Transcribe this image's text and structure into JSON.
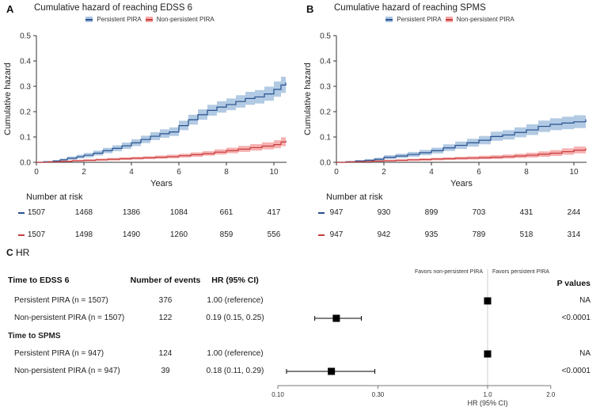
{
  "number_at_risk_heading": "Number at risk",
  "colors": {
    "persistent_line": "#27518f",
    "persistent_fill": "#aac4e0",
    "nonpersistent_line": "#c83c3c",
    "nonpersistent_fill": "#f5a8a8",
    "axis": "#333333",
    "reference_line": "#cccccc",
    "marker": "#000000"
  },
  "chart_data": [
    {
      "type": "line",
      "panel_letter": "A",
      "title": "Cumulative hazard of reaching EDSS 6",
      "xlabel": "Years",
      "ylabel": "Cumulative hazard",
      "xlim": [
        0,
        10.5
      ],
      "ylim": [
        0,
        0.5
      ],
      "xticks": [
        0,
        2,
        4,
        6,
        8,
        10
      ],
      "yticks": [
        0,
        0.1,
        0.2,
        0.3,
        0.4,
        0.5
      ],
      "ytick_labels": [
        "0.0",
        "0.1",
        "0.2",
        "0.3",
        "0.4",
        "0.5"
      ],
      "series": [
        {
          "name": "Persistent PIRA",
          "points": [
            [
              0,
              0,
              0,
              0
            ],
            [
              0.3,
              0.002,
              0,
              0.005
            ],
            [
              0.7,
              0.005,
              0.002,
              0.009
            ],
            [
              1,
              0.01,
              0.005,
              0.015
            ],
            [
              1.3,
              0.016,
              0.01,
              0.023
            ],
            [
              1.7,
              0.022,
              0.015,
              0.03
            ],
            [
              2,
              0.028,
              0.02,
              0.037
            ],
            [
              2.4,
              0.036,
              0.027,
              0.046
            ],
            [
              2.8,
              0.046,
              0.036,
              0.057
            ],
            [
              3.2,
              0.055,
              0.044,
              0.067
            ],
            [
              3.6,
              0.065,
              0.053,
              0.078
            ],
            [
              4,
              0.077,
              0.064,
              0.091
            ],
            [
              4.4,
              0.09,
              0.076,
              0.105
            ],
            [
              4.8,
              0.103,
              0.088,
              0.119
            ],
            [
              5.2,
              0.113,
              0.097,
              0.13
            ],
            [
              5.6,
              0.12,
              0.104,
              0.138
            ],
            [
              6,
              0.145,
              0.127,
              0.164
            ],
            [
              6.4,
              0.168,
              0.149,
              0.188
            ],
            [
              6.8,
              0.188,
              0.168,
              0.209
            ],
            [
              7.2,
              0.205,
              0.184,
              0.227
            ],
            [
              7.6,
              0.218,
              0.196,
              0.241
            ],
            [
              8,
              0.228,
              0.206,
              0.252
            ],
            [
              8.4,
              0.24,
              0.216,
              0.265
            ],
            [
              8.8,
              0.252,
              0.227,
              0.278
            ],
            [
              9.2,
              0.258,
              0.232,
              0.285
            ],
            [
              9.6,
              0.27,
              0.243,
              0.299
            ],
            [
              10,
              0.288,
              0.259,
              0.319
            ],
            [
              10.3,
              0.305,
              0.274,
              0.338
            ],
            [
              10.5,
              0.315,
              0.282,
              0.35
            ]
          ]
        },
        {
          "name": "Non-persistent PIRA",
          "points": [
            [
              0,
              0,
              0,
              0
            ],
            [
              0.5,
              0.002,
              0,
              0.004
            ],
            [
              1,
              0.004,
              0.001,
              0.007
            ],
            [
              1.5,
              0.006,
              0.003,
              0.01
            ],
            [
              2,
              0.008,
              0.004,
              0.012
            ],
            [
              2.5,
              0.01,
              0.006,
              0.015
            ],
            [
              3,
              0.012,
              0.007,
              0.017
            ],
            [
              3.5,
              0.014,
              0.009,
              0.02
            ],
            [
              4,
              0.016,
              0.011,
              0.022
            ],
            [
              4.5,
              0.018,
              0.012,
              0.024
            ],
            [
              5,
              0.02,
              0.014,
              0.027
            ],
            [
              5.5,
              0.022,
              0.016,
              0.03
            ],
            [
              6,
              0.026,
              0.019,
              0.034
            ],
            [
              6.5,
              0.03,
              0.022,
              0.039
            ],
            [
              7,
              0.034,
              0.026,
              0.044
            ],
            [
              7.5,
              0.04,
              0.031,
              0.051
            ],
            [
              8,
              0.046,
              0.036,
              0.058
            ],
            [
              8.5,
              0.052,
              0.041,
              0.065
            ],
            [
              9,
              0.058,
              0.046,
              0.072
            ],
            [
              9.5,
              0.064,
              0.051,
              0.079
            ],
            [
              10,
              0.07,
              0.056,
              0.087
            ],
            [
              10.3,
              0.08,
              0.064,
              0.099
            ],
            [
              10.5,
              0.085,
              0.068,
              0.105
            ]
          ]
        }
      ],
      "number_at_risk": {
        "persistent": [
          "1507",
          "1468",
          "1386",
          "1084",
          "661",
          "417"
        ],
        "non_persistent": [
          "1507",
          "1498",
          "1490",
          "1260",
          "859",
          "556"
        ]
      }
    },
    {
      "type": "line",
      "panel_letter": "B",
      "title": "Cumulative hazard of reaching SPMS",
      "xlabel": "Years",
      "ylabel": "Cumulative hazard",
      "xlim": [
        0,
        10.5
      ],
      "ylim": [
        0,
        0.5
      ],
      "xticks": [
        0,
        2,
        4,
        6,
        8,
        10
      ],
      "yticks": [
        0,
        0.1,
        0.2,
        0.3,
        0.4,
        0.5
      ],
      "ytick_labels": [
        "0.0",
        "0.1",
        "0.2",
        "0.3",
        "0.4",
        "0.5"
      ],
      "series": [
        {
          "name": "Persistent PIRA",
          "points": [
            [
              0,
              0,
              0,
              0
            ],
            [
              0.4,
              0.002,
              0,
              0.005
            ],
            [
              0.8,
              0.005,
              0.002,
              0.009
            ],
            [
              1.2,
              0.008,
              0.004,
              0.013
            ],
            [
              1.6,
              0.012,
              0.007,
              0.018
            ],
            [
              2,
              0.02,
              0.013,
              0.028
            ],
            [
              2.5,
              0.025,
              0.017,
              0.034
            ],
            [
              3,
              0.031,
              0.022,
              0.041
            ],
            [
              3.5,
              0.038,
              0.028,
              0.049
            ],
            [
              4,
              0.046,
              0.035,
              0.058
            ],
            [
              4.5,
              0.057,
              0.045,
              0.071
            ],
            [
              5,
              0.067,
              0.053,
              0.082
            ],
            [
              5.5,
              0.077,
              0.062,
              0.093
            ],
            [
              6,
              0.087,
              0.071,
              0.104
            ],
            [
              6.5,
              0.102,
              0.085,
              0.121
            ],
            [
              7,
              0.108,
              0.09,
              0.127
            ],
            [
              7.5,
              0.118,
              0.099,
              0.138
            ],
            [
              8,
              0.128,
              0.108,
              0.15
            ],
            [
              8.5,
              0.142,
              0.12,
              0.165
            ],
            [
              9,
              0.15,
              0.127,
              0.174
            ],
            [
              9.5,
              0.155,
              0.131,
              0.18
            ],
            [
              10,
              0.16,
              0.135,
              0.186
            ],
            [
              10.5,
              0.17,
              0.143,
              0.199
            ]
          ]
        },
        {
          "name": "Non-persistent PIRA",
          "points": [
            [
              0,
              0,
              0,
              0
            ],
            [
              0.5,
              0.002,
              0,
              0.004
            ],
            [
              1,
              0.003,
              0.001,
              0.006
            ],
            [
              1.5,
              0.005,
              0.002,
              0.008
            ],
            [
              2,
              0.006,
              0.003,
              0.01
            ],
            [
              2.5,
              0.008,
              0.004,
              0.012
            ],
            [
              3,
              0.01,
              0.005,
              0.014
            ],
            [
              3.5,
              0.011,
              0.006,
              0.016
            ],
            [
              4,
              0.013,
              0.008,
              0.018
            ],
            [
              4.5,
              0.014,
              0.009,
              0.02
            ],
            [
              5,
              0.016,
              0.01,
              0.022
            ],
            [
              5.5,
              0.017,
              0.011,
              0.024
            ],
            [
              6,
              0.018,
              0.012,
              0.026
            ],
            [
              6.5,
              0.02,
              0.013,
              0.028
            ],
            [
              7,
              0.022,
              0.015,
              0.031
            ],
            [
              7.5,
              0.025,
              0.017,
              0.034
            ],
            [
              8,
              0.028,
              0.019,
              0.038
            ],
            [
              8.5,
              0.032,
              0.022,
              0.043
            ],
            [
              9,
              0.036,
              0.025,
              0.048
            ],
            [
              9.5,
              0.042,
              0.03,
              0.055
            ],
            [
              10,
              0.048,
              0.035,
              0.062
            ],
            [
              10.5,
              0.055,
              0.04,
              0.071
            ]
          ]
        }
      ],
      "number_at_risk": {
        "persistent": [
          "947",
          "930",
          "899",
          "703",
          "431",
          "244"
        ],
        "non_persistent": [
          "947",
          "942",
          "935",
          "789",
          "518",
          "314"
        ]
      }
    },
    {
      "type": "forest",
      "panel_letter": "C",
      "panel_title": "HR",
      "header": {
        "col_group": "Time to EDSS 6",
        "col_events": "Number of events",
        "col_hr": "HR (95% CI)",
        "col_p": "P values"
      },
      "favors_left": "Favors non-persistent PIRA",
      "favors_right": "Favors persistent PIRA",
      "groups": [
        {
          "name": "Time to EDSS 6",
          "rows": [
            {
              "label": "Persistent PIRA (n = 1507)",
              "events": "376",
              "hr_text": "1.00 (reference)",
              "hr": 1.0,
              "ci": null,
              "p": "NA"
            },
            {
              "label": "Non-persistent PIRA (n = 1507)",
              "events": "122",
              "hr_text": "0.19 (0.15, 0.25)",
              "hr": 0.19,
              "ci": [
                0.15,
                0.25
              ],
              "p": "<0.0001"
            }
          ]
        },
        {
          "name": "Time to SPMS",
          "rows": [
            {
              "label": "Persistent PIRA (n = 947)",
              "events": "124",
              "hr_text": "1.00 (reference)",
              "hr": 1.0,
              "ci": null,
              "p": "NA"
            },
            {
              "label": "Non-persistent PIRA (n = 947)",
              "events": "39",
              "hr_text": "0.18 (0.11, 0.29)",
              "hr": 0.18,
              "ci": [
                0.11,
                0.29
              ],
              "p": "<0.0001"
            }
          ]
        }
      ],
      "axis": {
        "scale": "log",
        "ticks": [
          0.1,
          0.3,
          1.0,
          2.0
        ],
        "tick_labels": [
          "0.10",
          "0.30",
          "1.0",
          "2.0"
        ],
        "label": "HR (95% CI)",
        "reference": 1.0
      }
    }
  ]
}
